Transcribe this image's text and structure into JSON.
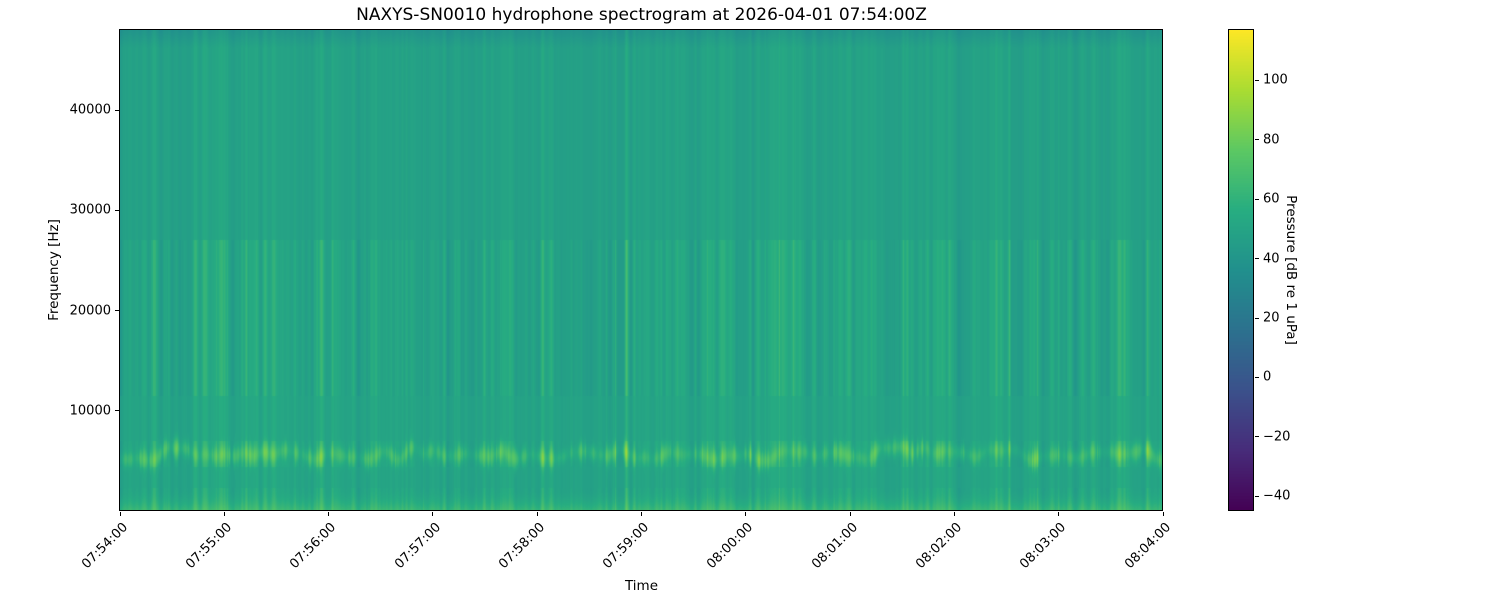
{
  "chart_data": {
    "type": "heatmap",
    "variant": "spectrogram",
    "title": "NAXYS-SN0010 hydrophone spectrogram at 2026-04-01 07:54:00Z",
    "xlabel": "Time",
    "ylabel": "Frequency [Hz]",
    "grid": false,
    "x_tick_labels": [
      "07:54:00",
      "07:55:00",
      "07:56:00",
      "07:57:00",
      "07:58:00",
      "07:59:00",
      "08:00:00",
      "08:01:00",
      "08:02:00",
      "08:03:00",
      "08:04:00"
    ],
    "x_range": [
      "07:54:00Z",
      "08:04:00Z"
    ],
    "duration_seconds": 600,
    "y_tick_values": [
      10000,
      20000,
      30000,
      40000
    ],
    "y_tick_labels": [
      "10000",
      "20000",
      "30000",
      "40000"
    ],
    "y_range_hz": [
      0,
      48000
    ],
    "colorbar": {
      "label": "Pressure [dB re 1 uPa]",
      "tick_values": [
        -40,
        -20,
        0,
        20,
        40,
        60,
        80,
        100
      ],
      "tick_labels": [
        "−40",
        "−20",
        "0",
        "20",
        "40",
        "60",
        "80",
        "100"
      ],
      "vmin_db": -45,
      "vmax_db": 117,
      "colormap": "viridis",
      "viridis_stops": [
        [
          68,
          1,
          84
        ],
        [
          71,
          44,
          122
        ],
        [
          59,
          81,
          139
        ],
        [
          44,
          113,
          142
        ],
        [
          33,
          144,
          141
        ],
        [
          39,
          173,
          129
        ],
        [
          92,
          200,
          99
        ],
        [
          170,
          220,
          50
        ],
        [
          253,
          231,
          37
        ]
      ],
      "position": "right"
    },
    "spectrogram_model": {
      "seed": 1337,
      "background_db": 47,
      "shelf": {
        "below_hz": 11500,
        "boost_db": 1.6
      },
      "tonal_band": {
        "center_hz": 5700,
        "sigma_hz": 430,
        "base_boost_db": 4,
        "spike_count": 260,
        "spike_db_range": [
          2,
          17
        ],
        "wobble_hz": 320
      },
      "low_freq_band": {
        "below_hz": 2300,
        "max_boost_db": 14.5
      },
      "nyquist_fade": {
        "above_hz": 46200,
        "drop_db": 9
      },
      "hf_attenuation": {
        "above_hz": 27000,
        "striation_factor": 0.5,
        "transient_factor": 0.42
      },
      "transients": {
        "count": 300,
        "amp_db_range": [
          2.5,
          13
        ],
        "strong_count": 14,
        "strong_amp_db_range": [
          13,
          21
        ]
      },
      "striation_db": 2.3
    }
  }
}
